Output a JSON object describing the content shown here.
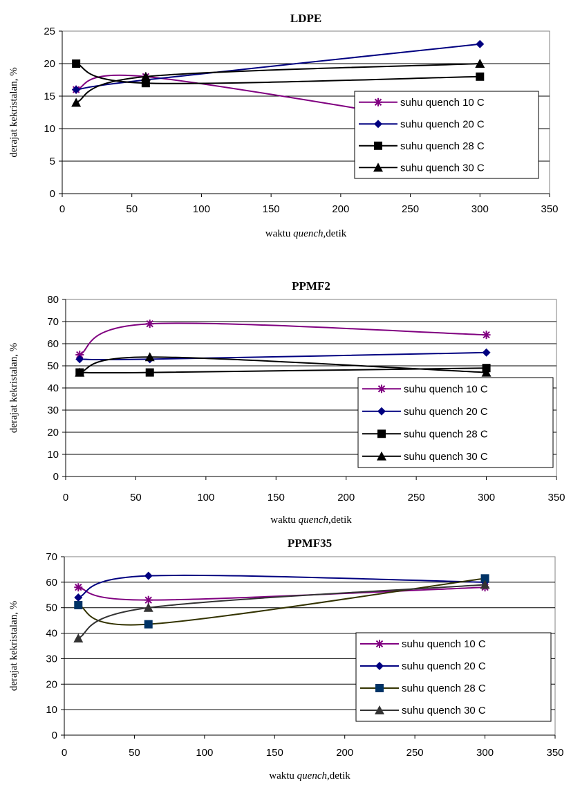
{
  "chart_data": [
    {
      "type": "line",
      "title": "LDPE",
      "xlabel": {
        "prefix": "waktu ",
        "italic": "quench",
        "suffix": ",detik"
      },
      "ylabel": "derajat kekristalan,  %",
      "xlim": [
        0,
        350
      ],
      "ylim": [
        0,
        25
      ],
      "xticks": [
        "0",
        "50",
        "100",
        "150",
        "200",
        "250",
        "300",
        "350"
      ],
      "yticks": [
        "0",
        "5",
        "10",
        "15",
        "20",
        "25"
      ],
      "grid": "horizontal",
      "legend": "right",
      "series": [
        {
          "name": "suhu quench 10 C",
          "marker": "star",
          "color": "#800080",
          "x": [
            10,
            60,
            300
          ],
          "y": [
            16,
            18,
            10
          ]
        },
        {
          "name": "suhu quench 20 C",
          "marker": "diamond",
          "color": "#000080",
          "x": [
            10,
            60,
            300
          ],
          "y": [
            16,
            17.5,
            23
          ]
        },
        {
          "name": "suhu quench 28 C",
          "marker": "square",
          "color": "#000000",
          "x": [
            10,
            60,
            300
          ],
          "y": [
            20,
            17,
            18
          ]
        },
        {
          "name": "suhu quench 30 C",
          "marker": "triangle",
          "color": "#000000",
          "x": [
            10,
            60,
            300
          ],
          "y": [
            14,
            18,
            20
          ]
        }
      ]
    },
    {
      "type": "line",
      "title": "PPMF2",
      "xlabel": {
        "prefix": "waktu ",
        "italic": "quench",
        "suffix": ",detik"
      },
      "ylabel": "derajat kekristalan,  %",
      "xlim": [
        0,
        350
      ],
      "ylim": [
        0,
        80
      ],
      "xticks": [
        "0",
        "50",
        "100",
        "150",
        "200",
        "250",
        "300",
        "350"
      ],
      "yticks": [
        "0",
        "10",
        "20",
        "30",
        "40",
        "50",
        "60",
        "70",
        "80"
      ],
      "grid": "horizontal",
      "legend": "right",
      "series": [
        {
          "name": "suhu quench 10 C",
          "marker": "star",
          "color": "#800080",
          "x": [
            10,
            60,
            300
          ],
          "y": [
            55,
            69,
            64
          ]
        },
        {
          "name": "suhu quench 20 C",
          "marker": "diamond",
          "color": "#000080",
          "x": [
            10,
            60,
            300
          ],
          "y": [
            53,
            53,
            56
          ]
        },
        {
          "name": "suhu quench 28 C",
          "marker": "square",
          "color": "#000000",
          "x": [
            10,
            60,
            300
          ],
          "y": [
            47,
            47,
            49
          ]
        },
        {
          "name": "suhu quench 30 C",
          "marker": "triangle",
          "color": "#000000",
          "x": [
            10,
            60,
            300
          ],
          "y": [
            47,
            54,
            47
          ]
        }
      ]
    },
    {
      "type": "line",
      "title": "PPMF35",
      "xlabel": {
        "prefix": "waktu ",
        "italic": "quench",
        "suffix": ",detik"
      },
      "ylabel": "derajat kekristalan,  %",
      "xlim": [
        0,
        350
      ],
      "ylim": [
        0,
        70
      ],
      "xticks": [
        "0",
        "50",
        "100",
        "150",
        "200",
        "250",
        "300",
        "350"
      ],
      "yticks": [
        "0",
        "10",
        "20",
        "30",
        "40",
        "50",
        "60",
        "70"
      ],
      "grid": "horizontal",
      "legend": "right",
      "series": [
        {
          "name": "suhu quench 10 C",
          "marker": "star",
          "color": "#800080",
          "x": [
            10,
            60,
            300
          ],
          "y": [
            58,
            53,
            58
          ]
        },
        {
          "name": "suhu quench 20 C",
          "marker": "diamond",
          "color": "#000080",
          "x": [
            10,
            60,
            300
          ],
          "y": [
            54,
            62.5,
            60
          ]
        },
        {
          "name": "suhu quench 28 C",
          "marker": "square",
          "color": "#003366",
          "line_color": "#333300",
          "x": [
            10,
            60,
            300
          ],
          "y": [
            51,
            43.5,
            61.5
          ]
        },
        {
          "name": "suhu quench 30 C",
          "marker": "triangle",
          "color": "#333333",
          "x": [
            10,
            60,
            300
          ],
          "y": [
            38,
            50,
            59
          ]
        }
      ]
    }
  ]
}
